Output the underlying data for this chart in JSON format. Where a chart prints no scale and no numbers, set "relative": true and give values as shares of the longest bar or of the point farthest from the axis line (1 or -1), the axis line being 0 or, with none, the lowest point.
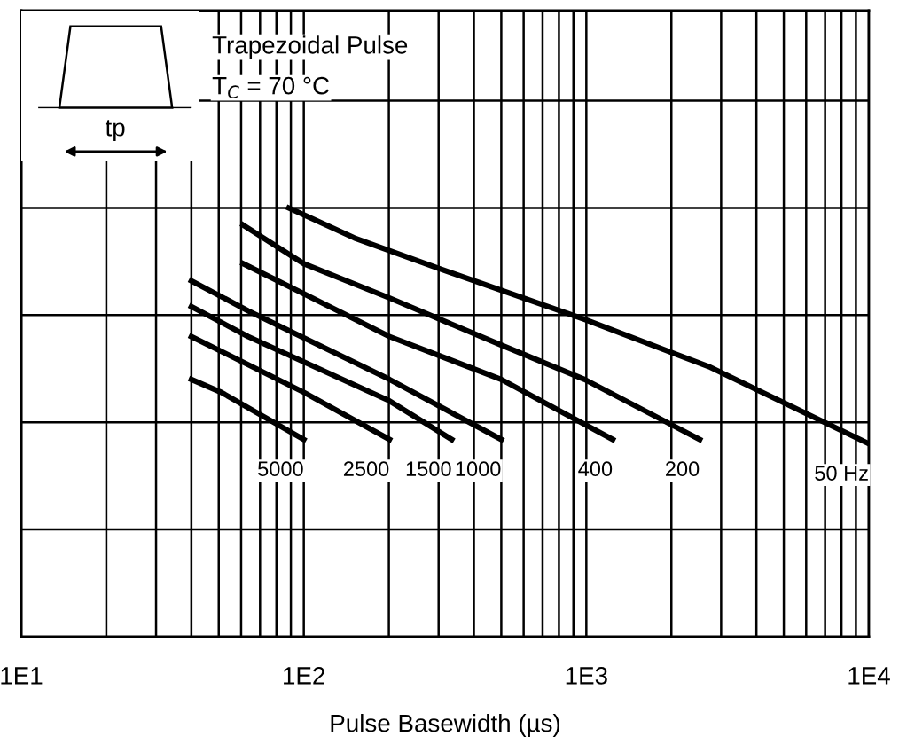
{
  "chart_data": {
    "type": "line",
    "relative": true,
    "xlabel": "Pulse Basewidth (µs)",
    "log": "x",
    "xlim": [
      10,
      10000
    ],
    "xticks": [
      {
        "value": 10,
        "label": "1E1"
      },
      {
        "value": 100,
        "label": "1E2"
      },
      {
        "value": 1000,
        "label": "1E3"
      },
      {
        "value": 10000,
        "label": "1E4"
      }
    ],
    "tick_labels": "x",
    "grid": true,
    "legend": false,
    "marker": "none",
    "line_style": "solid",
    "annotations": [
      "Trapezoidal Pulse",
      "T$_{C}$ = 70 °C",
      "tp"
    ],
    "series": [
      {
        "name": "5000",
        "color": "#000000",
        "x": [
          40,
          51,
          100
        ],
        "values": [
          0.6,
          0.57,
          0.46
        ]
      },
      {
        "name": "2500",
        "color": "#000000",
        "x": [
          40,
          100,
          201
        ],
        "values": [
          0.7,
          0.57,
          0.46
        ]
      },
      {
        "name": "1500",
        "color": "#000000",
        "x": [
          40,
          63.5,
          201,
          334
        ],
        "values": [
          0.77,
          0.7,
          0.55,
          0.46
        ]
      },
      {
        "name": "1000",
        "color": "#000000",
        "x": [
          40,
          63.5,
          201,
          500
        ],
        "values": [
          0.83,
          0.76,
          0.6,
          0.46
        ]
      },
      {
        "name": "400",
        "color": "#000000",
        "x": [
          61,
          100,
          201,
          500,
          1240
        ],
        "values": [
          0.87,
          0.8,
          0.7,
          0.6,
          0.46
        ]
      },
      {
        "name": "200",
        "color": "#000000",
        "x": [
          61,
          100,
          201,
          500,
          986,
          2520
        ],
        "values": [
          0.96,
          0.87,
          0.79,
          0.68,
          0.6,
          0.46
        ]
      },
      {
        "name": "50 Hz",
        "color": "#000000",
        "x": [
          88.5,
          151,
          297,
          986,
          2710,
          10000
        ],
        "values": [
          1,
          0.93,
          0.86,
          0.74,
          0.63,
          0.45
        ]
      }
    ]
  }
}
